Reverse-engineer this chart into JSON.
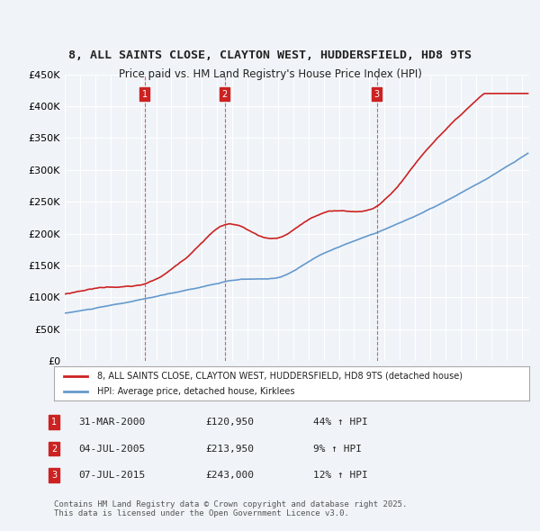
{
  "title": "8, ALL SAINTS CLOSE, CLAYTON WEST, HUDDERSFIELD, HD8 9TS",
  "subtitle": "Price paid vs. HM Land Registry's House Price Index (HPI)",
  "ylabel": "",
  "ylim": [
    0,
    450000
  ],
  "yticks": [
    0,
    50000,
    100000,
    150000,
    200000,
    250000,
    300000,
    350000,
    400000,
    450000
  ],
  "ytick_labels": [
    "£0",
    "£50K",
    "£100K",
    "£150K",
    "£200K",
    "£250K",
    "£300K",
    "£350K",
    "£400K",
    "£450K"
  ],
  "hpi_color": "#6699cc",
  "price_color": "#cc2222",
  "vline_color": "#cc2222",
  "sale_points": [
    {
      "date_num": 2000.25,
      "price": 120950,
      "label": "1"
    },
    {
      "date_num": 2005.5,
      "price": 213950,
      "label": "2"
    },
    {
      "date_num": 2015.5,
      "price": 243000,
      "label": "3"
    }
  ],
  "legend_price_label": "8, ALL SAINTS CLOSE, CLAYTON WEST, HUDDERSFIELD, HD8 9TS (detached house)",
  "legend_hpi_label": "HPI: Average price, detached house, Kirklees",
  "table_rows": [
    {
      "num": "1",
      "date": "31-MAR-2000",
      "price": "£120,950",
      "change": "44% ↑ HPI"
    },
    {
      "num": "2",
      "date": "04-JUL-2005",
      "price": "£213,950",
      "change": "9% ↑ HPI"
    },
    {
      "num": "3",
      "date": "07-JUL-2015",
      "price": "£243,000",
      "change": "12% ↑ HPI"
    }
  ],
  "footnote": "Contains HM Land Registry data © Crown copyright and database right 2025.\nThis data is licensed under the Open Government Licence v3.0.",
  "background_color": "#f0f4f8"
}
